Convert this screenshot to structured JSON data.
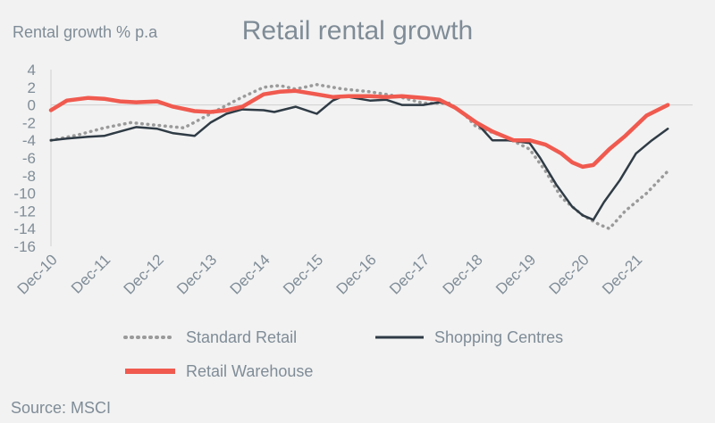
{
  "chart_data": {
    "type": "line",
    "title": "Retail rental growth",
    "ylabel": "Rental growth % p.a",
    "source": "Source: MSCI",
    "ylim": [
      -16,
      4
    ],
    "yticks": [
      "4",
      "2",
      "0",
      "-2",
      "-4",
      "-6",
      "-8",
      "-10",
      "-12",
      "-14",
      "-16"
    ],
    "xticks": [
      "Dec-10",
      "Dec-11",
      "Dec-12",
      "Dec-13",
      "Dec-14",
      "Dec-15",
      "Dec-16",
      "Dec-17",
      "Dec-18",
      "Dec-19",
      "Dec-20",
      "Dec-21"
    ],
    "x_range": [
      0,
      11.6
    ],
    "legend_position": "bottom",
    "grid": false,
    "series": [
      {
        "name": "Standard Retail",
        "color": "#9a9a9a",
        "style": "dotted",
        "values": [
          [
            0,
            -4.0
          ],
          [
            0.5,
            -3.4
          ],
          [
            1.0,
            -2.6
          ],
          [
            1.5,
            -2.0
          ],
          [
            2.0,
            -2.3
          ],
          [
            2.5,
            -2.6
          ],
          [
            3.0,
            -1.0
          ],
          [
            3.5,
            0.6
          ],
          [
            4.0,
            2.0
          ],
          [
            4.3,
            2.2
          ],
          [
            4.6,
            1.8
          ],
          [
            5.0,
            2.3
          ],
          [
            5.5,
            1.8
          ],
          [
            6.0,
            1.5
          ],
          [
            6.5,
            1.0
          ],
          [
            7.0,
            0.2
          ],
          [
            7.5,
            0.2
          ],
          [
            7.8,
            -1.2
          ],
          [
            8.0,
            -2.5
          ],
          [
            8.5,
            -3.5
          ],
          [
            9.0,
            -5.0
          ],
          [
            9.3,
            -7.5
          ],
          [
            9.6,
            -10.5
          ],
          [
            10.0,
            -12.5
          ],
          [
            10.3,
            -13.5
          ],
          [
            10.5,
            -14.0
          ],
          [
            10.8,
            -12.0
          ],
          [
            11.2,
            -10.0
          ],
          [
            11.6,
            -7.5
          ]
        ]
      },
      {
        "name": "Shopping Centres",
        "color": "#2f3b45",
        "style": "solid",
        "values": [
          [
            0,
            -4.0
          ],
          [
            0.3,
            -3.8
          ],
          [
            0.7,
            -3.6
          ],
          [
            1.0,
            -3.5
          ],
          [
            1.3,
            -3.0
          ],
          [
            1.6,
            -2.5
          ],
          [
            2.0,
            -2.7
          ],
          [
            2.3,
            -3.2
          ],
          [
            2.7,
            -3.5
          ],
          [
            3.0,
            -2.0
          ],
          [
            3.3,
            -1.0
          ],
          [
            3.6,
            -0.5
          ],
          [
            4.0,
            -0.6
          ],
          [
            4.2,
            -0.8
          ],
          [
            4.6,
            -0.2
          ],
          [
            5.0,
            -1.0
          ],
          [
            5.3,
            0.5
          ],
          [
            5.5,
            1.0
          ],
          [
            6.0,
            0.5
          ],
          [
            6.3,
            0.6
          ],
          [
            6.6,
            0.0
          ],
          [
            7.0,
            0.0
          ],
          [
            7.3,
            0.3
          ],
          [
            7.5,
            0.1
          ],
          [
            8.0,
            -2.0
          ],
          [
            8.3,
            -4.0
          ],
          [
            8.6,
            -4.0
          ],
          [
            9.0,
            -4.3
          ],
          [
            9.2,
            -6.0
          ],
          [
            9.5,
            -9.0
          ],
          [
            9.8,
            -11.5
          ],
          [
            10.0,
            -12.5
          ],
          [
            10.2,
            -13.0
          ],
          [
            10.4,
            -11.0
          ],
          [
            10.7,
            -8.5
          ],
          [
            11.0,
            -5.5
          ],
          [
            11.3,
            -4.0
          ],
          [
            11.6,
            -2.7
          ]
        ]
      },
      {
        "name": "Retail Warehouse",
        "color": "#f05a4f",
        "style": "solid",
        "values": [
          [
            0,
            -0.6
          ],
          [
            0.3,
            0.5
          ],
          [
            0.7,
            0.8
          ],
          [
            1.0,
            0.7
          ],
          [
            1.3,
            0.4
          ],
          [
            1.6,
            0.3
          ],
          [
            2.0,
            0.4
          ],
          [
            2.3,
            -0.2
          ],
          [
            2.7,
            -0.7
          ],
          [
            3.0,
            -0.8
          ],
          [
            3.3,
            -0.6
          ],
          [
            3.6,
            -0.2
          ],
          [
            4.0,
            1.2
          ],
          [
            4.3,
            1.5
          ],
          [
            4.6,
            1.6
          ],
          [
            5.0,
            1.2
          ],
          [
            5.3,
            0.9
          ],
          [
            5.6,
            1.0
          ],
          [
            6.0,
            1.0
          ],
          [
            6.3,
            0.9
          ],
          [
            6.6,
            1.0
          ],
          [
            7.0,
            0.8
          ],
          [
            7.3,
            0.6
          ],
          [
            7.6,
            -0.3
          ],
          [
            8.0,
            -2.0
          ],
          [
            8.3,
            -3.0
          ],
          [
            8.7,
            -4.0
          ],
          [
            9.0,
            -4.0
          ],
          [
            9.3,
            -4.5
          ],
          [
            9.6,
            -5.5
          ],
          [
            9.8,
            -6.5
          ],
          [
            10.0,
            -7.0
          ],
          [
            10.2,
            -6.8
          ],
          [
            10.5,
            -5.0
          ],
          [
            10.8,
            -3.5
          ],
          [
            11.2,
            -1.2
          ],
          [
            11.6,
            0.0
          ]
        ]
      }
    ]
  }
}
